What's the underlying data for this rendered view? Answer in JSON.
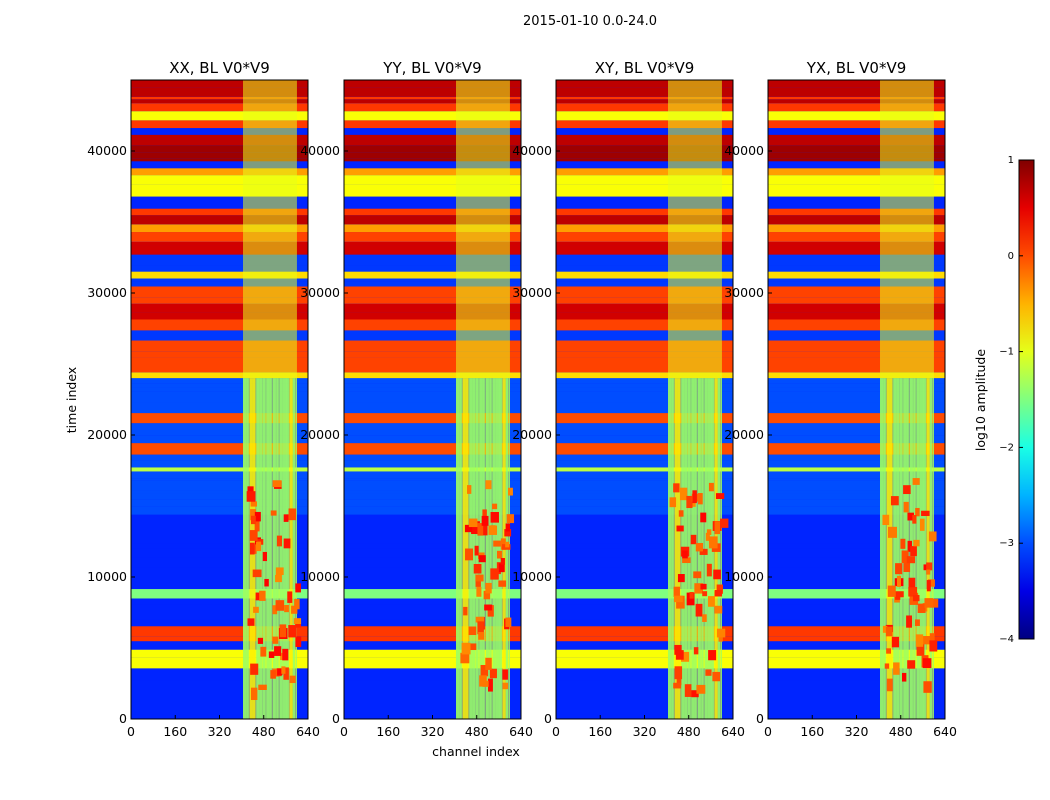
{
  "suptitle": "2015-01-10 0.0-24.0",
  "chart_data": {
    "type": "heatmap",
    "colormap": "jet",
    "xlabel": "channel index",
    "ylabel": "time index",
    "xlim": [
      0,
      640
    ],
    "ylim": [
      0,
      45000
    ],
    "xticks": [
      0,
      160,
      320,
      480,
      640
    ],
    "yticks": [
      0,
      10000,
      20000,
      30000,
      40000
    ],
    "colorbar": {
      "label": "log10 amplitude",
      "range": [
        -4,
        1
      ],
      "ticks": [
        1,
        0,
        -1,
        -2,
        -3,
        -4
      ],
      "tick_labels": [
        "1",
        "0",
        "−1",
        "−2",
        "−3",
        "−4"
      ]
    },
    "panels": [
      {
        "title": "XX, BL V0*V9",
        "rfi_channel_range": [
          405,
          600
        ]
      },
      {
        "title": "YY, BL V0*V9",
        "rfi_channel_range": [
          405,
          600
        ]
      },
      {
        "title": "XY, BL V0*V9",
        "rfi_channel_range": [
          405,
          600
        ]
      },
      {
        "title": "YX, BL V0*V9",
        "rfi_channel_range": [
          405,
          600
        ]
      }
    ]
  }
}
